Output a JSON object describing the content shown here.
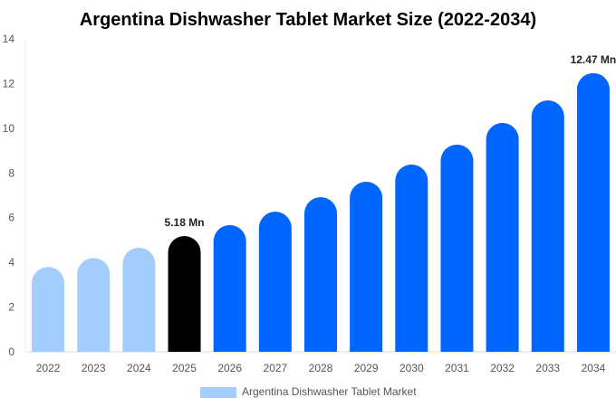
{
  "chart_data": {
    "type": "bar",
    "title": "Argentina Dishwasher Tablet Market Size (2022-2034)",
    "categories": [
      "2022",
      "2023",
      "2024",
      "2025",
      "2026",
      "2027",
      "2028",
      "2029",
      "2030",
      "2031",
      "2032",
      "2033",
      "2034"
    ],
    "series": [
      {
        "name": "Argentina Dishwasher Tablet Market",
        "values": [
          3.8,
          4.2,
          4.66,
          5.18,
          5.67,
          6.27,
          6.92,
          7.61,
          8.38,
          9.27,
          10.24,
          11.25,
          12.47
        ]
      }
    ],
    "data_labels": {
      "3": "5.18 Mn",
      "12": "12.47 Mn"
    },
    "ylim": [
      0,
      14
    ],
    "yticks": [
      0,
      2,
      4,
      6,
      8,
      10,
      12,
      14
    ],
    "grid": false,
    "legend": "bottom",
    "colors": {
      "historical": "#a3cdfc",
      "base_year": "#000000",
      "forecast": "#0066ff"
    },
    "color_groups": [
      "historical",
      "historical",
      "historical",
      "base_year",
      "forecast",
      "forecast",
      "forecast",
      "forecast",
      "forecast",
      "forecast",
      "forecast",
      "forecast",
      "forecast"
    ]
  }
}
